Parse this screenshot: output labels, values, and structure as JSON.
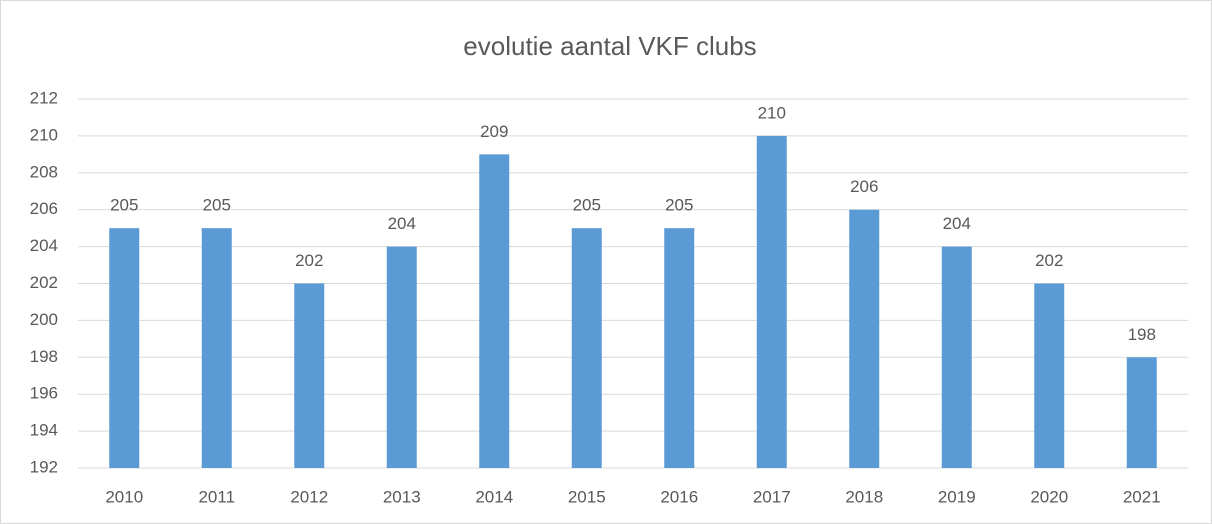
{
  "chart_data": {
    "type": "bar",
    "title": "evolutie aantal VKF clubs",
    "categories": [
      "2010",
      "2011",
      "2012",
      "2013",
      "2014",
      "2015",
      "2016",
      "2017",
      "2018",
      "2019",
      "2020",
      "2021"
    ],
    "values": [
      205,
      205,
      202,
      204,
      209,
      205,
      205,
      210,
      206,
      204,
      202,
      198
    ],
    "color": "#5b9bd5",
    "ylim": [
      192,
      212
    ],
    "yticks": [
      192,
      194,
      196,
      198,
      200,
      202,
      204,
      206,
      208,
      210,
      212
    ],
    "grid": true,
    "data_labels": true
  }
}
